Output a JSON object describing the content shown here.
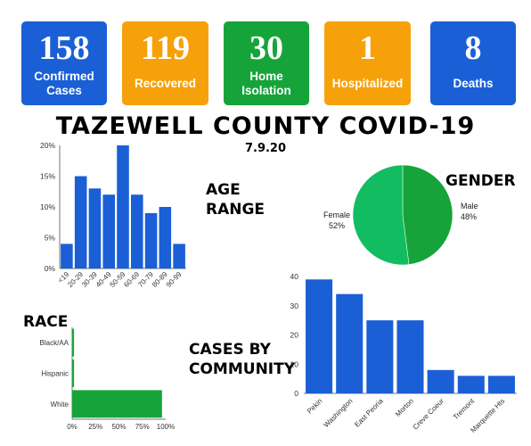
{
  "stats": [
    {
      "value": "158",
      "label": "Confirmed Cases",
      "color": "#1a5fd6"
    },
    {
      "value": "119",
      "label": "Recovered",
      "color": "#f7a10a"
    },
    {
      "value": "30",
      "label": "Home Isolation",
      "color": "#16a43a"
    },
    {
      "value": "1",
      "label": "Hospitalized",
      "color": "#f7a10a"
    },
    {
      "value": "8",
      "label": "Deaths",
      "color": "#1a5fd6"
    }
  ],
  "title": "TAZEWELL COUNTY COVID-19",
  "date": "7.9.20",
  "headings": {
    "age": "AGE RANGE",
    "gender": "GENDER",
    "race": "RACE",
    "community": "CASES BY COMMUNITY"
  },
  "colors": {
    "blue": "#1a5fd6",
    "green": "#16a43a",
    "light_green": "#12bd62",
    "orange": "#f7a10a"
  },
  "chart_data": [
    {
      "type": "bar",
      "title": "AGE RANGE",
      "categories": [
        "<19",
        "20-29",
        "30-39",
        "40-49",
        "50-59",
        "60-69",
        "70-79",
        "80-89",
        "90-99"
      ],
      "values": [
        4,
        15,
        13,
        12,
        20,
        12,
        9,
        10,
        4
      ],
      "ylim": [
        0,
        20
      ],
      "yticks": [
        "0%",
        "5%",
        "10%",
        "15%",
        "20%"
      ],
      "ytick_values": [
        0,
        5,
        10,
        15,
        20
      ],
      "unit": "%",
      "grid": false
    },
    {
      "type": "pie",
      "title": "GENDER",
      "slices": [
        {
          "label": "Female",
          "pct_label": "52%",
          "value": 52,
          "color": "#12bd62"
        },
        {
          "label": "Male",
          "pct_label": "48%",
          "value": 48,
          "color": "#16a43a"
        }
      ]
    },
    {
      "type": "bar",
      "orientation": "horizontal",
      "title": "RACE",
      "categories": [
        "Black/AA",
        "Hispanic",
        "White"
      ],
      "values": [
        2,
        2,
        96
      ],
      "xlim": [
        0,
        100
      ],
      "xticks": [
        "0%",
        "25%",
        "50%",
        "75%",
        "100%"
      ],
      "xtick_values": [
        0,
        25,
        50,
        75,
        100
      ],
      "unit": "%",
      "grid": false
    },
    {
      "type": "bar",
      "title": "CASES BY COMMUNITY",
      "categories": [
        "Pekin",
        "Washington",
        "East Peoria",
        "Morton",
        "Creve Coeur",
        "Tremont",
        "Marquette Hts"
      ],
      "values": [
        39,
        34,
        25,
        25,
        8,
        6,
        6
      ],
      "ylim": [
        0,
        40
      ],
      "yticks": [
        "0",
        "10",
        "20",
        "30",
        "40"
      ],
      "ytick_values": [
        0,
        10,
        20,
        30,
        40
      ],
      "grid": false
    }
  ]
}
